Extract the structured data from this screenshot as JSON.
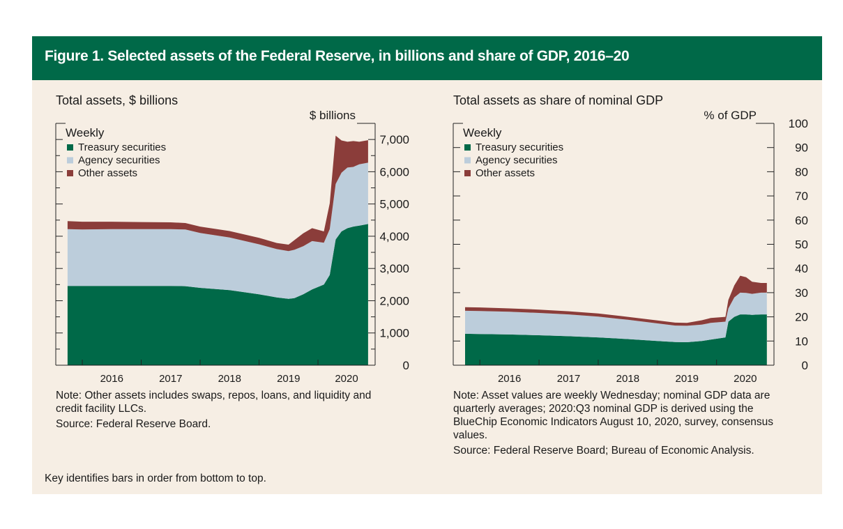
{
  "title": "Figure 1. Selected assets of the Federal Reserve, in billions and share of GDP, 2016–20",
  "colors": {
    "header": "#006948",
    "treasury": "#006948",
    "agency": "#bccddb",
    "other": "#8b3d3a",
    "panel": "#f6eee4"
  },
  "key_note": "Key identifies bars in order from bottom to top.",
  "left": {
    "subtitle": "Total assets, $ billions",
    "axis_unit": "$ billions",
    "legend_title": "Weekly",
    "legend": [
      "Treasury securities",
      "Agency securities",
      "Other assets"
    ],
    "note": "Note: Other assets includes swaps, repos, loans, and liquidity and credit facility LLCs.",
    "source": "Source: Federal Reserve Board."
  },
  "right": {
    "subtitle": "Total assets as share of nominal GDP",
    "axis_unit": "% of GDP",
    "legend_title": "Weekly",
    "legend": [
      "Treasury securities",
      "Agency securities",
      "Other assets"
    ],
    "note": "Note: Asset values are weekly Wednesday; nominal GDP data are quarterly averages; 2020:Q3 nominal GDP is derived using the BlueChip Economic Indicators August 10, 2020, survey, consensus values.",
    "source": "Source: Federal Reserve Board; Bureau of Economic Analysis."
  },
  "chart_data": [
    {
      "type": "area",
      "stacked": true,
      "xlabel": "",
      "ylabel": "$ billions",
      "xlim": [
        2015.55,
        2020.97
      ],
      "ylim": [
        0,
        7500
      ],
      "yticks": [
        0,
        1000,
        2000,
        3000,
        4000,
        5000,
        6000,
        7000
      ],
      "ytick_labels": [
        "0",
        "1,000",
        "2,000",
        "3,000",
        "4,000",
        "5,000",
        "6,000",
        "7,000"
      ],
      "xticks": [
        2016,
        2017,
        2018,
        2019,
        2020
      ],
      "x": [
        2015.75,
        2016.0,
        2016.5,
        2017.0,
        2017.5,
        2017.75,
        2018.0,
        2018.5,
        2019.0,
        2019.3,
        2019.5,
        2019.6,
        2019.75,
        2019.9,
        2020.1,
        2020.2,
        2020.3,
        2020.4,
        2020.5,
        2020.6,
        2020.7,
        2020.85
      ],
      "series": [
        {
          "name": "Treasury securities",
          "values": [
            2460,
            2460,
            2460,
            2460,
            2460,
            2450,
            2400,
            2330,
            2200,
            2100,
            2060,
            2080,
            2200,
            2350,
            2500,
            2800,
            3900,
            4150,
            4250,
            4300,
            4330,
            4380
          ]
        },
        {
          "name": "Agency securities",
          "values": [
            1760,
            1750,
            1760,
            1760,
            1760,
            1760,
            1700,
            1630,
            1550,
            1500,
            1480,
            1500,
            1490,
            1500,
            1300,
            1420,
            1720,
            1820,
            1880,
            1850,
            1900,
            1900
          ]
        },
        {
          "name": "Other assets",
          "values": [
            250,
            240,
            230,
            220,
            210,
            200,
            200,
            200,
            200,
            190,
            200,
            300,
            400,
            400,
            350,
            800,
            1500,
            1000,
            800,
            800,
            700,
            700
          ]
        }
      ]
    },
    {
      "type": "area",
      "stacked": true,
      "xlabel": "",
      "ylabel": "% of GDP",
      "xlim": [
        2015.55,
        2020.97
      ],
      "ylim": [
        0,
        100
      ],
      "yticks": [
        0,
        10,
        20,
        30,
        40,
        50,
        60,
        70,
        80,
        90,
        100
      ],
      "ytick_labels": [
        "0",
        "10",
        "20",
        "30",
        "40",
        "50",
        "60",
        "70",
        "80",
        "90",
        "100"
      ],
      "xticks": [
        2016,
        2017,
        2018,
        2019,
        2020
      ],
      "x": [
        2015.75,
        2016.0,
        2016.5,
        2017.0,
        2017.5,
        2018.0,
        2018.5,
        2019.0,
        2019.3,
        2019.5,
        2019.75,
        2019.9,
        2020.15,
        2020.2,
        2020.3,
        2020.4,
        2020.5,
        2020.6,
        2020.75,
        2020.85
      ],
      "series": [
        {
          "name": "Treasury securities",
          "values": [
            13,
            12.9,
            12.7,
            12.4,
            12.0,
            11.5,
            10.8,
            10.0,
            9.6,
            9.5,
            10.0,
            10.6,
            11.5,
            18.0,
            20.0,
            21.0,
            21.0,
            20.8,
            21.0,
            21.0
          ]
        },
        {
          "name": "Agency securities",
          "values": [
            9.5,
            9.5,
            9.4,
            9.2,
            9.0,
            8.6,
            8.0,
            7.3,
            6.8,
            6.8,
            6.8,
            6.9,
            6.5,
            5.5,
            8.0,
            9.0,
            8.9,
            8.7,
            9.0,
            9.0
          ]
        },
        {
          "name": "Other assets",
          "values": [
            1.5,
            1.5,
            1.4,
            1.4,
            1.3,
            1.3,
            1.2,
            1.2,
            1.2,
            1.2,
            1.8,
            2.0,
            2.0,
            3.5,
            5.0,
            7.0,
            6.5,
            5.0,
            4.0,
            4.0
          ]
        }
      ]
    }
  ]
}
